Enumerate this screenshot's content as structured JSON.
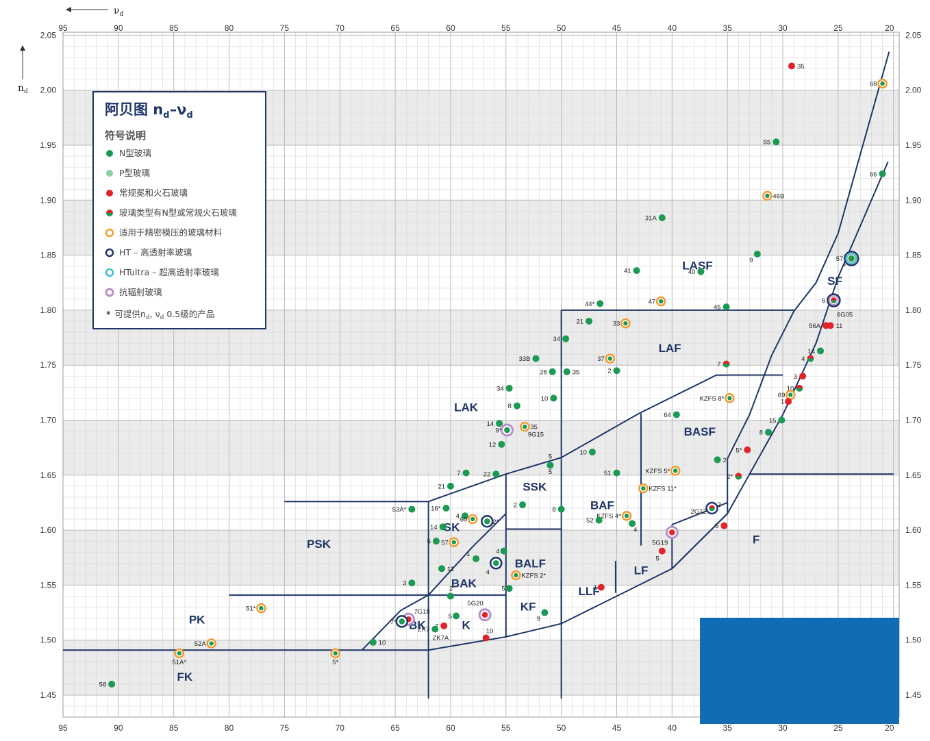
{
  "axes": {
    "x_symbol": "ν",
    "x_sub": "d",
    "y_symbol": "n",
    "y_sub": "d",
    "x_ticks": [
      "95",
      "90",
      "85",
      "80",
      "75",
      "70",
      "65",
      "60",
      "55",
      "50",
      "45",
      "40",
      "35",
      "30",
      "25",
      "20"
    ],
    "y_ticks": [
      "2.05",
      "2.00",
      "1.95",
      "1.90",
      "1.85",
      "1.80",
      "1.75",
      "1.70",
      "1.65",
      "1.60",
      "1.55",
      "1.50",
      "1.45"
    ]
  },
  "legend": {
    "title_main": "阿贝图 n",
    "title_sub1": "d",
    "title_mid": "–ν",
    "title_sub2": "d",
    "heading": "符号说明",
    "items": [
      {
        "kind": "n",
        "label": "N型玻璃"
      },
      {
        "kind": "p",
        "label": "P型玻璃"
      },
      {
        "kind": "classic",
        "label": "常规冕和火石玻璃"
      },
      {
        "kind": "half",
        "label": "玻璃类型有N型或常规火石玻璃"
      },
      {
        "kind": "orange",
        "label": "适用于精密模压的玻璃材料"
      },
      {
        "kind": "ht",
        "label": "HT – 高透射率玻璃"
      },
      {
        "kind": "htu",
        "label": "HTultra – 超高透射率玻璃"
      },
      {
        "kind": "rad",
        "label": "抗辐射玻璃"
      }
    ],
    "footnote_star": "*",
    "footnote_a": "可提供n",
    "footnote_b": "d",
    "footnote_c": ", ν",
    "footnote_d": "d",
    "footnote_e": " 0.5级的产品"
  },
  "colors": {
    "n_glass": "#1a9a52",
    "p_glass": "#8fd0a2",
    "classic": "#e0242a",
    "orange_ring": "#f29a2e",
    "ht_ring": "#1d3567",
    "htu_ring": "#3fbfcf",
    "rad_ring": "#b88fc9",
    "boundary": "#1d3567",
    "band": "#ebebeb"
  },
  "chart_data": {
    "type": "scatter",
    "title": "阿贝图 nd–νd",
    "xlabel": "νd",
    "ylabel": "nd",
    "xlim": [
      95,
      20
    ],
    "ylim": [
      1.43,
      2.07
    ],
    "x_reversed": true,
    "grid": true,
    "legend_placement": "top-left",
    "regions": [
      {
        "name": "LASF",
        "x": 37.7,
        "y": 1.837
      },
      {
        "name": "SF",
        "x": 25.3,
        "y": 1.823
      },
      {
        "name": "LAF",
        "x": 40.2,
        "y": 1.762
      },
      {
        "name": "BASF",
        "x": 37.5,
        "y": 1.686
      },
      {
        "name": "LAK",
        "x": 58.6,
        "y": 1.708
      },
      {
        "name": "SSK",
        "x": 52.4,
        "y": 1.636
      },
      {
        "name": "BAF",
        "x": 46.3,
        "y": 1.619
      },
      {
        "name": "SK",
        "x": 59.9,
        "y": 1.599
      },
      {
        "name": "PSK",
        "x": 71.9,
        "y": 1.584
      },
      {
        "name": "BALF",
        "x": 52.8,
        "y": 1.566
      },
      {
        "name": "F",
        "x": 32.4,
        "y": 1.588
      },
      {
        "name": "LF",
        "x": 42.8,
        "y": 1.56
      },
      {
        "name": "BAK",
        "x": 58.8,
        "y": 1.548
      },
      {
        "name": "LLF",
        "x": 47.5,
        "y": 1.541
      },
      {
        "name": "KF",
        "x": 53.0,
        "y": 1.527
      },
      {
        "name": "PK",
        "x": 82.9,
        "y": 1.515
      },
      {
        "name": "BK",
        "x": 63.0,
        "y": 1.51
      },
      {
        "name": "K",
        "x": 58.6,
        "y": 1.51
      },
      {
        "name": "FK",
        "x": 84.0,
        "y": 1.463
      }
    ],
    "points": [
      {
        "label": "35",
        "x": 29.2,
        "y": 2.022,
        "fill": "red",
        "ring": ""
      },
      {
        "label": "68",
        "x": 21.0,
        "y": 2.006,
        "fill": "green",
        "ring": "orange"
      },
      {
        "label": "55",
        "x": 30.6,
        "y": 1.953,
        "fill": "green",
        "ring": ""
      },
      {
        "label": "66",
        "x": 21.0,
        "y": 1.924,
        "fill": "green",
        "ring": ""
      },
      {
        "label": "46B",
        "x": 31.4,
        "y": 1.904,
        "fill": "green",
        "ring": "orange"
      },
      {
        "label": "31A",
        "x": 40.9,
        "y": 1.884,
        "fill": "green",
        "ring": ""
      },
      {
        "label": "9",
        "x": 32.3,
        "y": 1.851,
        "fill": "green",
        "ring": ""
      },
      {
        "label": "57",
        "x": 23.8,
        "y": 1.847,
        "fill": "green",
        "ring": "htu_ht"
      },
      {
        "label": "41",
        "x": 43.2,
        "y": 1.836,
        "fill": "green",
        "ring": ""
      },
      {
        "label": "40",
        "x": 37.4,
        "y": 1.835,
        "fill": "green",
        "ring": ""
      },
      {
        "label": "6",
        "x": 25.4,
        "y": 1.809,
        "fill": "half",
        "ring": "rad_ht"
      },
      {
        "label": "44*",
        "x": 46.5,
        "y": 1.806,
        "fill": "green",
        "ring": ""
      },
      {
        "label": "47",
        "x": 41.0,
        "y": 1.808,
        "fill": "green",
        "ring": "orange"
      },
      {
        "label": "45",
        "x": 35.1,
        "y": 1.803,
        "fill": "green",
        "ring": ""
      },
      {
        "label": "21",
        "x": 47.5,
        "y": 1.79,
        "fill": "green",
        "ring": ""
      },
      {
        "label": "33",
        "x": 44.2,
        "y": 1.788,
        "fill": "green",
        "ring": "orange"
      },
      {
        "label": "56A",
        "x": 26.1,
        "y": 1.786,
        "fill": "red",
        "ring": ""
      },
      {
        "label": "11",
        "x": 25.7,
        "y": 1.786,
        "fill": "red",
        "ring": ""
      },
      {
        "label": "34",
        "x": 49.6,
        "y": 1.774,
        "fill": "green",
        "ring": ""
      },
      {
        "label": "14",
        "x": 26.6,
        "y": 1.763,
        "fill": "green",
        "ring": ""
      },
      {
        "label": "33B",
        "x": 52.3,
        "y": 1.756,
        "fill": "green",
        "ring": ""
      },
      {
        "label": "37",
        "x": 45.6,
        "y": 1.756,
        "fill": "green",
        "ring": "orange"
      },
      {
        "label": "4",
        "x": 27.5,
        "y": 1.756,
        "fill": "half",
        "ring": ""
      },
      {
        "label": "7",
        "x": 35.1,
        "y": 1.751,
        "fill": "half",
        "ring": ""
      },
      {
        "label": "28",
        "x": 50.8,
        "y": 1.744,
        "fill": "green",
        "ring": ""
      },
      {
        "label": "35",
        "x": 49.5,
        "y": 1.744,
        "fill": "green",
        "ring": ""
      },
      {
        "label": "2",
        "x": 45.0,
        "y": 1.745,
        "fill": "green",
        "ring": ""
      },
      {
        "label": "3",
        "x": 28.2,
        "y": 1.74,
        "fill": "red",
        "ring": ""
      },
      {
        "label": "34",
        "x": 54.7,
        "y": 1.729,
        "fill": "green",
        "ring": ""
      },
      {
        "label": "10",
        "x": 28.5,
        "y": 1.729,
        "fill": "half",
        "ring": ""
      },
      {
        "label": "69",
        "x": 29.3,
        "y": 1.723,
        "fill": "green",
        "ring": "orange"
      },
      {
        "label": "10",
        "x": 50.7,
        "y": 1.72,
        "fill": "green",
        "ring": ""
      },
      {
        "label": "KZFS 8*",
        "x": 34.8,
        "y": 1.72,
        "fill": "green",
        "ring": "orange"
      },
      {
        "label": "1",
        "x": 29.5,
        "y": 1.717,
        "fill": "red",
        "ring": ""
      },
      {
        "label": "8",
        "x": 54.0,
        "y": 1.713,
        "fill": "green",
        "ring": ""
      },
      {
        "label": "64",
        "x": 39.6,
        "y": 1.705,
        "fill": "green",
        "ring": ""
      },
      {
        "label": "15",
        "x": 30.1,
        "y": 1.7,
        "fill": "green",
        "ring": ""
      },
      {
        "label": "14",
        "x": 55.6,
        "y": 1.697,
        "fill": "green",
        "ring": ""
      },
      {
        "label": "35",
        "x": 53.3,
        "y": 1.694,
        "fill": "green",
        "ring": "orange"
      },
      {
        "label": "9*",
        "x": 54.9,
        "y": 1.691,
        "fill": "green",
        "ring": "rad"
      },
      {
        "label": "8",
        "x": 31.3,
        "y": 1.689,
        "fill": "green",
        "ring": ""
      },
      {
        "label": "12",
        "x": 55.4,
        "y": 1.678,
        "fill": "green",
        "ring": ""
      },
      {
        "label": "5*",
        "x": 33.2,
        "y": 1.673,
        "fill": "red",
        "ring": ""
      },
      {
        "label": "10",
        "x": 47.2,
        "y": 1.671,
        "fill": "green",
        "ring": ""
      },
      {
        "label": "2",
        "x": 35.9,
        "y": 1.664,
        "fill": "green",
        "ring": ""
      },
      {
        "label": "5",
        "x": 51.0,
        "y": 1.659,
        "fill": "green",
        "ring": ""
      },
      {
        "label": "7",
        "x": 58.6,
        "y": 1.652,
        "fill": "green",
        "ring": ""
      },
      {
        "label": "22",
        "x": 55.9,
        "y": 1.651,
        "fill": "green",
        "ring": ""
      },
      {
        "label": "51",
        "x": 45.0,
        "y": 1.652,
        "fill": "green",
        "ring": ""
      },
      {
        "label": "KZFS 5*",
        "x": 39.7,
        "y": 1.654,
        "fill": "green",
        "ring": "orange"
      },
      {
        "label": "2*",
        "x": 34.0,
        "y": 1.649,
        "fill": "half",
        "ring": ""
      },
      {
        "label": "21",
        "x": 60.0,
        "y": 1.64,
        "fill": "green",
        "ring": ""
      },
      {
        "label": "KZFS 11*",
        "x": 42.6,
        "y": 1.638,
        "fill": "green",
        "ring": "orange"
      },
      {
        "label": "2",
        "x": 53.5,
        "y": 1.623,
        "fill": "green",
        "ring": ""
      },
      {
        "label": "16*",
        "x": 60.4,
        "y": 1.62,
        "fill": "green",
        "ring": ""
      },
      {
        "label": "8",
        "x": 50.0,
        "y": 1.619,
        "fill": "green",
        "ring": ""
      },
      {
        "label": "2",
        "x": 36.4,
        "y": 1.62,
        "fill": "half",
        "ring": "ht"
      },
      {
        "label": "53A*",
        "x": 63.5,
        "y": 1.619,
        "fill": "green",
        "ring": ""
      },
      {
        "label": "4",
        "x": 58.7,
        "y": 1.613,
        "fill": "green",
        "ring": ""
      },
      {
        "label": "60",
        "x": 58.0,
        "y": 1.61,
        "fill": "green",
        "ring": "orange"
      },
      {
        "label": "2*",
        "x": 56.7,
        "y": 1.608,
        "fill": "green",
        "ring": "ht"
      },
      {
        "label": "KZFS 4*",
        "x": 44.1,
        "y": 1.613,
        "fill": "green",
        "ring": "orange"
      },
      {
        "label": "52",
        "x": 46.6,
        "y": 1.609,
        "fill": "green",
        "ring": ""
      },
      {
        "label": "4",
        "x": 43.6,
        "y": 1.606,
        "fill": "green",
        "ring": ""
      },
      {
        "label": "5",
        "x": 35.3,
        "y": 1.604,
        "fill": "red",
        "ring": ""
      },
      {
        "label": "14",
        "x": 60.7,
        "y": 1.603,
        "fill": "green",
        "ring": ""
      },
      {
        "label": "5G19",
        "x": 40.0,
        "y": 1.598,
        "fill": "red",
        "ring": "rad"
      },
      {
        "label": "57",
        "x": 59.7,
        "y": 1.589,
        "fill": "green",
        "ring": "orange"
      },
      {
        "label": "5",
        "x": 61.3,
        "y": 1.59,
        "fill": "green",
        "ring": ""
      },
      {
        "label": "4",
        "x": 55.2,
        "y": 1.581,
        "fill": "green",
        "ring": ""
      },
      {
        "label": "5",
        "x": 40.9,
        "y": 1.581,
        "fill": "red",
        "ring": ""
      },
      {
        "label": "1",
        "x": 57.7,
        "y": 1.574,
        "fill": "green",
        "ring": ""
      },
      {
        "label": "4",
        "x": 55.9,
        "y": 1.57,
        "fill": "green",
        "ring": "ht"
      },
      {
        "label": "11",
        "x": 60.8,
        "y": 1.565,
        "fill": "green",
        "ring": ""
      },
      {
        "label": "KZFS 2*",
        "x": 54.1,
        "y": 1.559,
        "fill": "green",
        "ring": "orange"
      },
      {
        "label": "3",
        "x": 63.5,
        "y": 1.552,
        "fill": "green",
        "ring": ""
      },
      {
        "label": "5",
        "x": 54.7,
        "y": 1.547,
        "fill": "green",
        "ring": ""
      },
      {
        "label": "1",
        "x": 46.4,
        "y": 1.548,
        "fill": "red",
        "ring": ""
      },
      {
        "label": "2",
        "x": 60.0,
        "y": 1.54,
        "fill": "green",
        "ring": ""
      },
      {
        "label": "51*",
        "x": 77.1,
        "y": 1.529,
        "fill": "green",
        "ring": "orange"
      },
      {
        "label": "9",
        "x": 51.5,
        "y": 1.525,
        "fill": "green",
        "ring": ""
      },
      {
        "label": "5G20",
        "x": 56.9,
        "y": 1.523,
        "fill": "red",
        "ring": "rad"
      },
      {
        "label": "5",
        "x": 59.5,
        "y": 1.522,
        "fill": "green",
        "ring": ""
      },
      {
        "label": "7G18",
        "x": 63.8,
        "y": 1.519,
        "fill": "red",
        "ring": "rad"
      },
      {
        "label": "7*",
        "x": 64.4,
        "y": 1.517,
        "fill": "green",
        "ring": "ht"
      },
      {
        "label": "7",
        "x": 60.6,
        "y": 1.513,
        "fill": "red",
        "ring": ""
      },
      {
        "label": "ZK7",
        "x": 61.4,
        "y": 1.51,
        "fill": "green",
        "ring": ""
      },
      {
        "label": "10",
        "x": 56.8,
        "y": 1.502,
        "fill": "red",
        "ring": ""
      },
      {
        "label": "10",
        "x": 67.0,
        "y": 1.498,
        "fill": "green",
        "ring": ""
      },
      {
        "label": "52A",
        "x": 81.6,
        "y": 1.497,
        "fill": "green",
        "ring": "orange"
      },
      {
        "label": "51A*",
        "x": 84.5,
        "y": 1.488,
        "fill": "green",
        "ring": "orange"
      },
      {
        "label": "5*",
        "x": 70.4,
        "y": 1.488,
        "fill": "green",
        "ring": "orange"
      },
      {
        "label": "58",
        "x": 90.6,
        "y": 1.46,
        "fill": "green",
        "ring": ""
      }
    ],
    "extra_labels": [
      {
        "text": "ZK7A",
        "x": 60.9,
        "y": 1.5
      },
      {
        "text": "6G05",
        "x": 24.4,
        "y": 1.794
      },
      {
        "text": "9G15",
        "x": 52.3,
        "y": 1.685
      },
      {
        "text": "2G12",
        "x": 37.6,
        "y": 1.615
      },
      {
        "text": "5",
        "x": 51.0,
        "y": 1.651
      },
      {
        "text": "*",
        "x": 24.4,
        "y": 1.838
      }
    ]
  }
}
